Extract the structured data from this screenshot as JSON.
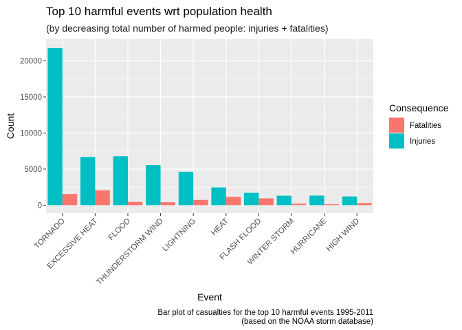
{
  "chart_data": {
    "type": "bar",
    "title": "Top 10 harmful events wrt population health",
    "subtitle": "(by decreasing total number of harmed people: injuries + fatalities)",
    "xlabel": "Event",
    "ylabel": "Count",
    "caption": [
      "Bar plot of casualties for the top 10 harmful events 1995-2011",
      "(based on the NOAA storm database)"
    ],
    "categories": [
      "TORNADO",
      "EXCESSIVE HEAT",
      "FLOOD",
      "THUNDERSTORM WIND",
      "LIGHTNING",
      "HEAT",
      "FLASH FLOOD",
      "WINTER STORM",
      "HURRICANE",
      "HIGH WIND"
    ],
    "series": [
      {
        "name": "Injuries",
        "color": "#00BFC4",
        "values": [
          21765,
          6680,
          6780,
          5560,
          4630,
          2470,
          1710,
          1320,
          1330,
          1210
        ]
      },
      {
        "name": "Fatalities",
        "color": "#F8766D",
        "values": [
          1545,
          2060,
          450,
          410,
          730,
          1150,
          950,
          210,
          130,
          300
        ]
      }
    ],
    "ylim": [
      -1100,
      23000
    ],
    "yticks": [
      0,
      5000,
      10000,
      15000,
      20000
    ],
    "ytick_labels": [
      "0",
      "5000",
      "10000",
      "15000",
      "20000"
    ],
    "panel_background": "#EBEBEB",
    "grid": true,
    "legend": {
      "title": "Consequence",
      "position": "right",
      "entries": [
        {
          "label": "Fatalities",
          "color": "#F8766D"
        },
        {
          "label": "Injuries",
          "color": "#00BFC4"
        }
      ]
    }
  }
}
